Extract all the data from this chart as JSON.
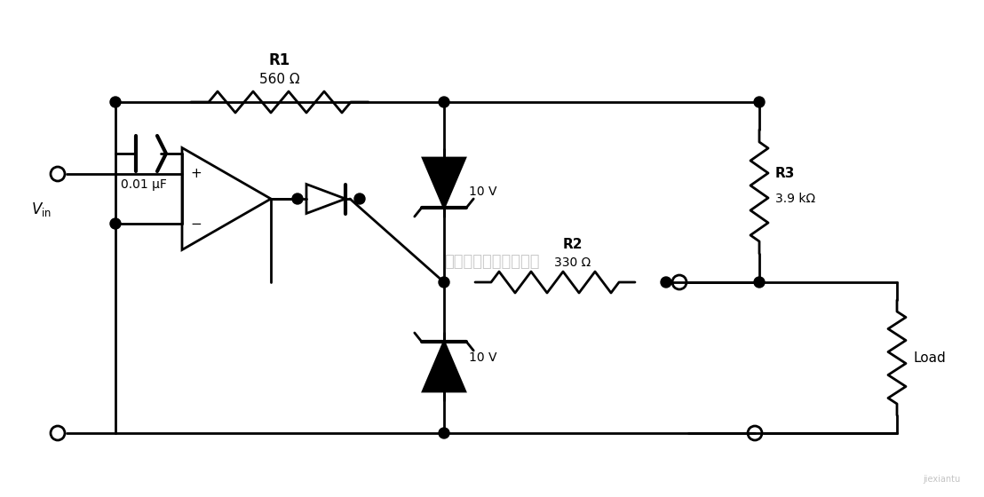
{
  "bg_color": "#ffffff",
  "line_color": "#000000",
  "dot_color": "#000000",
  "fig_width": 11.08,
  "fig_height": 5.6,
  "labels": {
    "R1": "R1",
    "R1_val": "560 Ω",
    "R2": "R2",
    "R2_val": "330 Ω",
    "R3": "R3",
    "R3_val": "3.9 kΩ",
    "C_val": "0.01 μF",
    "v10_top": "10 V",
    "v10_bot": "10 V",
    "Vin": "$V_{\\mathrm{in}}$",
    "Load": "Load",
    "watermark": "杭州将睿科技有限公司"
  }
}
